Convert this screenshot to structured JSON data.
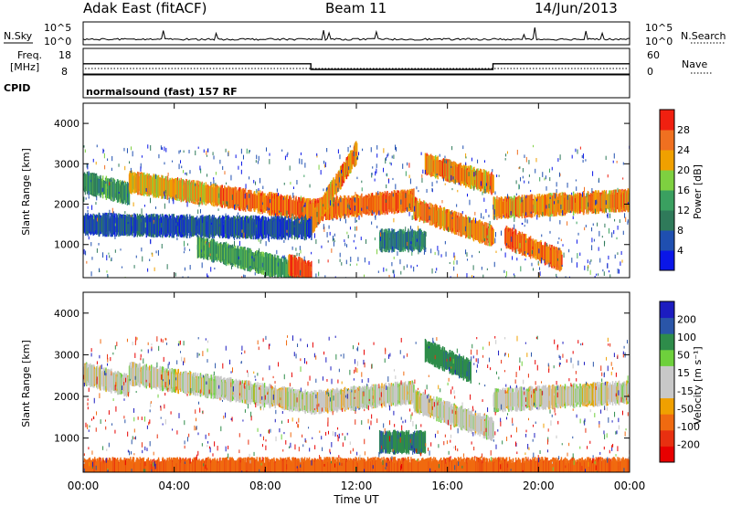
{
  "header": {
    "station": "Adak East (fitACF)",
    "beam": "Beam 11",
    "date": "14/Jun/2013"
  },
  "top_panels": {
    "nsky_label": "N.Sky",
    "nsearch_label": "N.Search",
    "freq_label_line1": "Freq.",
    "freq_label_line2": "[MHz]",
    "nave_label": "Nave",
    "cpid_label": "CPID",
    "cpid_text": "normalsound (fast) 157 RF",
    "noise_ticks": [
      "10^5",
      "10^0"
    ],
    "freq_ticks": [
      "18",
      "8"
    ],
    "nave_ticks": [
      "60",
      "0"
    ]
  },
  "colors": {
    "power_scale": [
      "#0a16e8",
      "#1f4fb0",
      "#2f7a5a",
      "#3aa060",
      "#7ed040",
      "#f0a000",
      "#f07020",
      "#f02010"
    ],
    "velocity_scale": [
      "#1c1cc0",
      "#2a55a8",
      "#2e8c4a",
      "#6ed03c",
      "#c8c8c8",
      "#c8c8c8",
      "#f0a000",
      "#f06a10",
      "#e83010",
      "#e80000"
    ]
  },
  "chart_data": [
    {
      "type": "heatmap",
      "name": "power",
      "title": "",
      "xlabel": "Time UT",
      "ylabel": "Slant Range [km]",
      "xlim": [
        "00:00",
        "00:00"
      ],
      "ylim": [
        180,
        4500
      ],
      "x_tick_labels": [
        "00:00",
        "04:00",
        "08:00",
        "12:00",
        "16:00",
        "20:00",
        "00:00"
      ],
      "y_tick_labels": [
        "1000",
        "2000",
        "3000",
        "4000"
      ],
      "colorbar_label": "Power [dB]",
      "colorbar_ticks": [
        "4",
        "8",
        "12",
        "16",
        "20",
        "24",
        "28"
      ],
      "colorbar_range": [
        0,
        32
      ],
      "echo_bands": [
        {
          "t_start": 0.0,
          "t_end": 2.0,
          "range_start": 2550,
          "range_end": 2250,
          "power": 12
        },
        {
          "t_start": 2.0,
          "t_end": 6.0,
          "range_start": 2550,
          "range_end": 2200,
          "power": 22
        },
        {
          "t_start": 6.0,
          "t_end": 10.0,
          "range_start": 2200,
          "range_end": 1850,
          "power": 26
        },
        {
          "t_start": 10.0,
          "t_end": 14.5,
          "range_start": 1850,
          "range_end": 2100,
          "power": 26
        },
        {
          "t_start": 14.5,
          "t_end": 18.0,
          "range_start": 1900,
          "range_end": 1200,
          "power": 24
        },
        {
          "t_start": 18.0,
          "t_end": 24.0,
          "range_start": 1900,
          "range_end": 2100,
          "power": 24
        },
        {
          "t_start": 10.0,
          "t_end": 12.0,
          "range_start": 1500,
          "range_end": 3300,
          "power": 24
        },
        {
          "t_start": 15.0,
          "t_end": 18.0,
          "range_start": 3000,
          "range_end": 2500,
          "power": 24
        },
        {
          "t_start": 18.5,
          "t_end": 21.0,
          "range_start": 1200,
          "range_end": 600,
          "power": 26
        },
        {
          "t_start": 5.0,
          "t_end": 9.5,
          "range_start": 950,
          "range_end": 300,
          "power": 14
        },
        {
          "t_start": 9.0,
          "t_end": 10.0,
          "range_start": 500,
          "range_end": 300,
          "power": 28
        },
        {
          "t_start": 0.0,
          "t_end": 10.0,
          "range_start": 1500,
          "range_end": 1400,
          "power": 6
        },
        {
          "t_start": 13.0,
          "t_end": 15.0,
          "range_start": 1100,
          "range_end": 1100,
          "power": 10
        }
      ]
    },
    {
      "type": "heatmap",
      "name": "velocity",
      "title": "",
      "xlabel": "Time UT",
      "ylabel": "Slant Range [km]",
      "xlim": [
        "00:00",
        "00:00"
      ],
      "ylim": [
        180,
        4500
      ],
      "x_tick_labels": [
        "00:00",
        "04:00",
        "08:00",
        "12:00",
        "16:00",
        "20:00",
        "00:00"
      ],
      "y_tick_labels": [
        "1000",
        "2000",
        "3000",
        "4000"
      ],
      "colorbar_label": "Velocity [m s⁻¹]",
      "colorbar_ticks": [
        "200",
        "100",
        "50",
        "15",
        "-15",
        "-50",
        "-100",
        "-200"
      ],
      "colorbar_range": [
        -250,
        250
      ],
      "echo_bands": [
        {
          "t_start": 0.0,
          "t_end": 2.0,
          "range_start": 2550,
          "range_end": 2250,
          "velocity": 0
        },
        {
          "t_start": 2.0,
          "t_end": 6.0,
          "range_start": 2550,
          "range_end": 2200,
          "velocity": 0
        },
        {
          "t_start": 6.0,
          "t_end": 10.0,
          "range_start": 2200,
          "range_end": 1850,
          "velocity": 0
        },
        {
          "t_start": 10.0,
          "t_end": 14.5,
          "range_start": 1850,
          "range_end": 2100,
          "velocity": 0
        },
        {
          "t_start": 14.5,
          "t_end": 18.0,
          "range_start": 1900,
          "range_end": 1200,
          "velocity": 0
        },
        {
          "t_start": 18.0,
          "t_end": 24.0,
          "range_start": 1900,
          "range_end": 2100,
          "velocity": 0
        },
        {
          "t_start": 15.0,
          "t_end": 17.0,
          "range_start": 3100,
          "range_end": 2600,
          "velocity": 60
        },
        {
          "t_start": 13.0,
          "t_end": 15.0,
          "range_start": 900,
          "range_end": 900,
          "velocity": 60
        },
        {
          "t_start": 0.0,
          "t_end": 24.0,
          "range_start": 250,
          "range_end": 250,
          "velocity": -60
        }
      ]
    }
  ],
  "frequency_segments_mhz": [
    {
      "t_start": 0.0,
      "t_end": 10.0,
      "value": 12.0
    },
    {
      "t_start": 10.0,
      "t_end": 18.0,
      "value": 9.8
    },
    {
      "t_start": 18.0,
      "t_end": 24.0,
      "value": 12.0
    }
  ]
}
